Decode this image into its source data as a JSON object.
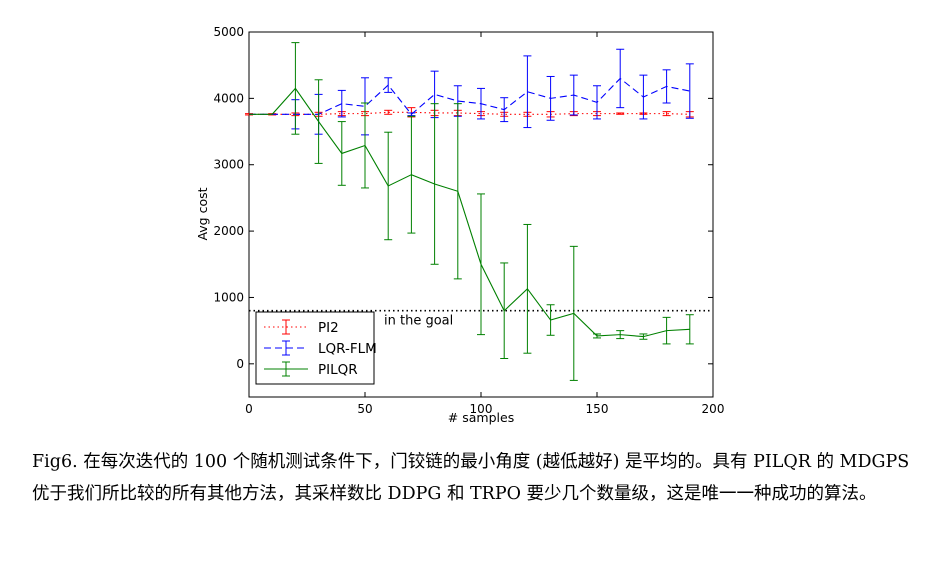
{
  "chart_data": {
    "type": "line",
    "xlabel": "# samples",
    "ylabel": "Avg cost",
    "xlim": [
      0,
      200
    ],
    "ylim": [
      -500,
      5000
    ],
    "xticks": [
      0,
      50,
      100,
      150,
      200
    ],
    "yticks": [
      0,
      1000,
      2000,
      3000,
      4000,
      5000
    ],
    "grid": false,
    "legend_position": "lower-left",
    "annotation": {
      "text": "in the goal",
      "y": 800
    },
    "series": [
      {
        "name": "PI2",
        "color": "#ff0000",
        "style": "dotted",
        "x": [
          0,
          10,
          20,
          30,
          40,
          50,
          60,
          70,
          80,
          90,
          100,
          110,
          120,
          130,
          140,
          150,
          160,
          170,
          180,
          190
        ],
        "y": [
          3760,
          3760,
          3760,
          3760,
          3770,
          3770,
          3790,
          3790,
          3780,
          3780,
          3770,
          3760,
          3760,
          3760,
          3770,
          3770,
          3770,
          3770,
          3770,
          3760
        ],
        "err": [
          10,
          10,
          20,
          30,
          30,
          30,
          30,
          70,
          40,
          40,
          30,
          30,
          30,
          40,
          30,
          30,
          10,
          10,
          30,
          40
        ]
      },
      {
        "name": "LQR-FLM",
        "color": "#0000ff",
        "style": "dashed",
        "x": [
          0,
          10,
          20,
          30,
          40,
          50,
          60,
          70,
          80,
          90,
          100,
          110,
          120,
          130,
          140,
          150,
          160,
          170,
          180,
          190
        ],
        "y": [
          3760,
          3760,
          3760,
          3760,
          3920,
          3880,
          4200,
          3760,
          4060,
          3960,
          3920,
          3830,
          4100,
          4000,
          4050,
          3940,
          4300,
          4020,
          4180,
          4110
        ],
        "err": [
          0,
          0,
          220,
          300,
          200,
          430,
          110,
          20,
          350,
          230,
          230,
          180,
          540,
          330,
          300,
          250,
          440,
          330,
          250,
          410
        ]
      },
      {
        "name": "PILQR",
        "color": "#008000",
        "style": "solid",
        "x": [
          0,
          10,
          20,
          30,
          40,
          50,
          60,
          70,
          80,
          90,
          100,
          110,
          120,
          130,
          140,
          150,
          160,
          170,
          180,
          190
        ],
        "y": [
          3760,
          3760,
          4150,
          3650,
          3170,
          3290,
          2680,
          2850,
          2710,
          2600,
          1500,
          800,
          1130,
          660,
          760,
          420,
          440,
          410,
          500,
          520
        ],
        "err": [
          0,
          0,
          690,
          630,
          480,
          640,
          810,
          880,
          1210,
          1320,
          1060,
          720,
          970,
          230,
          1010,
          30,
          60,
          40,
          200,
          220
        ]
      }
    ]
  },
  "caption": {
    "label": "Fig6.",
    "text": "在每次迭代的 100 个随机测试条件下，门铰链的最小角度 (越低越好) 是平均的。具有 PILQR 的 MDGPS 优于我们所比较的所有其他方法，其采样数比 DDPG 和 TRPO 要少几个数量级，这是唯一一种成功的算法。"
  }
}
